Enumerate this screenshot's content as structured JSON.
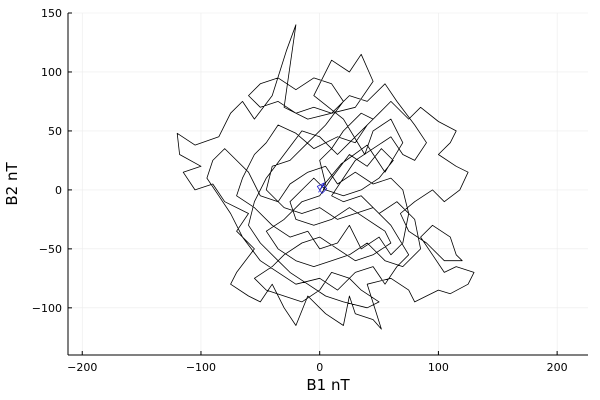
{
  "chart_data": {
    "type": "line",
    "title": "",
    "xlabel": "B1 nT",
    "ylabel": "B2 nT",
    "xlim": [
      -212,
      226
    ],
    "ylim": [
      -140,
      150
    ],
    "x_ticks": [
      -200,
      -100,
      0,
      100,
      200
    ],
    "y_ticks": [
      -100,
      -50,
      0,
      50,
      100,
      150
    ],
    "x_tick_labels": [
      "−200",
      "−100",
      "0",
      "100",
      "200"
    ],
    "y_tick_labels": [
      "−100",
      "−50",
      "0",
      "50",
      "100",
      "150"
    ],
    "grid": true,
    "legend": "none",
    "series": [
      {
        "color": "#000000",
        "points": [
          [
            0,
            0
          ],
          [
            18,
            22
          ],
          [
            40,
            38
          ],
          [
            55,
            15
          ],
          [
            70,
            40
          ],
          [
            60,
            60
          ],
          [
            45,
            50
          ],
          [
            38,
            30
          ],
          [
            20,
            60
          ],
          [
            -5,
            80
          ],
          [
            10,
            110
          ],
          [
            25,
            100
          ],
          [
            35,
            115
          ],
          [
            45,
            92
          ],
          [
            30,
            70
          ],
          [
            -10,
            60
          ],
          [
            -30,
            70
          ],
          [
            -20,
            140
          ],
          [
            -28,
            118
          ],
          [
            -40,
            80
          ],
          [
            -55,
            60
          ],
          [
            -65,
            75
          ],
          [
            -75,
            65
          ],
          [
            -85,
            45
          ],
          [
            -105,
            38
          ],
          [
            -120,
            48
          ],
          [
            -118,
            30
          ],
          [
            -100,
            20
          ],
          [
            -115,
            15
          ],
          [
            -105,
            0
          ],
          [
            -90,
            5
          ],
          [
            -80,
            -10
          ],
          [
            -60,
            -20
          ],
          [
            -70,
            -35
          ],
          [
            -55,
            -50
          ],
          [
            -70,
            -70
          ],
          [
            -75,
            -80
          ],
          [
            -60,
            -90
          ],
          [
            -50,
            -95
          ],
          [
            -40,
            -80
          ],
          [
            -30,
            -100
          ],
          [
            -20,
            -115
          ],
          [
            -10,
            -90
          ],
          [
            5,
            -105
          ],
          [
            20,
            -115
          ],
          [
            25,
            -90
          ],
          [
            30,
            -105
          ],
          [
            45,
            -110
          ],
          [
            52,
            -118
          ],
          [
            40,
            -80
          ],
          [
            60,
            -75
          ],
          [
            75,
            -85
          ],
          [
            80,
            -95
          ],
          [
            90,
            -90
          ],
          [
            100,
            -85
          ],
          [
            110,
            -88
          ],
          [
            125,
            -80
          ],
          [
            130,
            -70
          ],
          [
            115,
            -65
          ],
          [
            105,
            -70
          ],
          [
            95,
            -55
          ],
          [
            85,
            -40
          ],
          [
            95,
            -30
          ],
          [
            110,
            -40
          ],
          [
            115,
            -55
          ],
          [
            120,
            -60
          ],
          [
            105,
            -60
          ],
          [
            90,
            -45
          ],
          [
            75,
            -35
          ],
          [
            68,
            -20
          ],
          [
            80,
            -10
          ],
          [
            95,
            0
          ],
          [
            105,
            -10
          ],
          [
            118,
            0
          ],
          [
            125,
            15
          ],
          [
            115,
            20
          ],
          [
            100,
            30
          ],
          [
            110,
            40
          ],
          [
            115,
            50
          ],
          [
            100,
            58
          ],
          [
            85,
            70
          ],
          [
            75,
            60
          ],
          [
            60,
            75
          ],
          [
            50,
            65
          ],
          [
            40,
            55
          ],
          [
            30,
            40
          ],
          [
            15,
            45
          ],
          [
            -5,
            35
          ],
          [
            -20,
            48
          ],
          [
            -35,
            55
          ],
          [
            -45,
            40
          ],
          [
            -55,
            30
          ],
          [
            -65,
            10
          ],
          [
            -70,
            -5
          ],
          [
            -55,
            -15
          ],
          [
            -40,
            -30
          ],
          [
            -25,
            -40
          ],
          [
            -10,
            -35
          ],
          [
            0,
            -50
          ],
          [
            15,
            -45
          ],
          [
            25,
            -30
          ],
          [
            35,
            -50
          ],
          [
            50,
            -40
          ],
          [
            60,
            -55
          ],
          [
            70,
            -45
          ],
          [
            75,
            -20
          ],
          [
            70,
            0
          ],
          [
            60,
            10
          ],
          [
            45,
            5
          ],
          [
            30,
            15
          ],
          [
            15,
            5
          ],
          [
            5,
            20
          ],
          [
            -10,
            15
          ],
          [
            -25,
            5
          ],
          [
            -35,
            -10
          ],
          [
            -50,
            -5
          ],
          [
            -60,
            15
          ],
          [
            -70,
            25
          ],
          [
            -80,
            35
          ],
          [
            -90,
            25
          ],
          [
            -95,
            10
          ],
          [
            -85,
            -5
          ],
          [
            -75,
            -20
          ],
          [
            -65,
            -40
          ],
          [
            -50,
            -60
          ],
          [
            -35,
            -70
          ],
          [
            -20,
            -80
          ],
          [
            0,
            -75
          ],
          [
            15,
            -85
          ],
          [
            30,
            -70
          ],
          [
            45,
            -65
          ],
          [
            55,
            -80
          ],
          [
            65,
            -65
          ],
          [
            75,
            -55
          ],
          [
            60,
            -30
          ],
          [
            45,
            -15
          ],
          [
            30,
            -20
          ],
          [
            15,
            -25
          ],
          [
            0,
            -15
          ],
          [
            -15,
            -20
          ],
          [
            -30,
            -15
          ],
          [
            -45,
            0
          ],
          [
            -40,
            20
          ],
          [
            -25,
            25
          ],
          [
            -10,
            40
          ],
          [
            5,
            55
          ],
          [
            20,
            75
          ],
          [
            10,
            90
          ],
          [
            -5,
            95
          ],
          [
            -20,
            85
          ],
          [
            -35,
            95
          ],
          [
            -50,
            90
          ],
          [
            -60,
            80
          ],
          [
            -50,
            70
          ],
          [
            -35,
            75
          ],
          [
            -20,
            65
          ],
          [
            -5,
            70
          ],
          [
            10,
            65
          ],
          [
            25,
            80
          ],
          [
            40,
            75
          ],
          [
            55,
            90
          ],
          [
            65,
            75
          ],
          [
            80,
            55
          ],
          [
            90,
            40
          ],
          [
            80,
            25
          ],
          [
            70,
            30
          ],
          [
            60,
            45
          ],
          [
            45,
            35
          ],
          [
            30,
            25
          ],
          [
            20,
            10
          ],
          [
            10,
            -5
          ],
          [
            20,
            -10
          ],
          [
            35,
            -5
          ],
          [
            50,
            -20
          ],
          [
            65,
            -10
          ],
          [
            80,
            -25
          ],
          [
            85,
            -50
          ],
          [
            70,
            -65
          ],
          [
            55,
            -60
          ],
          [
            40,
            -45
          ],
          [
            25,
            -55
          ],
          [
            10,
            -60
          ],
          [
            -5,
            -65
          ],
          [
            -20,
            -60
          ],
          [
            -35,
            -50
          ],
          [
            -45,
            -35
          ],
          [
            -30,
            -25
          ],
          [
            -15,
            -10
          ],
          [
            0,
            -5
          ],
          [
            10,
            10
          ],
          [
            25,
            30
          ],
          [
            40,
            20
          ],
          [
            52,
            35
          ],
          [
            62,
            25
          ],
          [
            50,
            10
          ],
          [
            35,
            0
          ],
          [
            20,
            -5
          ],
          [
            5,
            0
          ],
          [
            -5,
            10
          ],
          [
            -15,
            0
          ],
          [
            -25,
            -10
          ],
          [
            -20,
            -25
          ],
          [
            -5,
            -30
          ],
          [
            10,
            -25
          ],
          [
            25,
            -15
          ],
          [
            40,
            -25
          ],
          [
            55,
            -35
          ],
          [
            60,
            -45
          ],
          [
            45,
            -55
          ],
          [
            30,
            -60
          ],
          [
            15,
            -50
          ],
          [
            0,
            -40
          ],
          [
            -15,
            -45
          ],
          [
            -30,
            -55
          ],
          [
            -40,
            -65
          ],
          [
            -55,
            -75
          ],
          [
            -45,
            -85
          ],
          [
            -30,
            -90
          ],
          [
            -15,
            -95
          ],
          [
            0,
            -85
          ],
          [
            10,
            -70
          ],
          [
            25,
            -75
          ],
          [
            35,
            -85
          ],
          [
            50,
            -95
          ],
          [
            40,
            -100
          ],
          [
            20,
            -95
          ],
          [
            5,
            -90
          ],
          [
            -10,
            -80
          ],
          [
            -25,
            -70
          ],
          [
            -35,
            -60
          ],
          [
            -50,
            -45
          ],
          [
            -60,
            -30
          ],
          [
            -55,
            -10
          ],
          [
            -45,
            10
          ],
          [
            -30,
            30
          ],
          [
            -15,
            50
          ],
          [
            0,
            45
          ],
          [
            15,
            30
          ],
          [
            30,
            45
          ],
          [
            45,
            60
          ],
          [
            35,
            65
          ],
          [
            20,
            50
          ],
          [
            10,
            35
          ],
          [
            0,
            25
          ],
          [
            5,
            5
          ],
          [
            3,
            0
          ]
        ]
      },
      {
        "color": "#1f1fd0",
        "points": [
          [
            -1,
            -2
          ],
          [
            3,
            4
          ],
          [
            6,
            1
          ],
          [
            2,
            -3
          ],
          [
            -2,
            3
          ],
          [
            4,
            6
          ],
          [
            1,
            2
          ]
        ]
      }
    ]
  }
}
